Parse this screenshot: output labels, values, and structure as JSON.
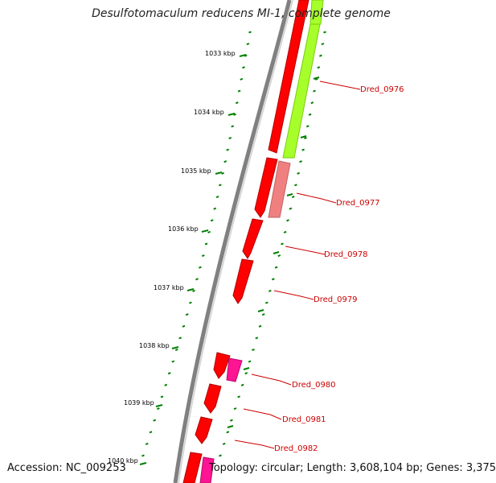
{
  "title": "Desulfotomaculum reducens MI-1, complete genome",
  "accession": "Accession: NC_009253",
  "summary": "Topology: circular; Length: 3,608,104 bp; Genes: 3,375",
  "colors": {
    "backbone": "#808080",
    "forward_gene": "#ff0000",
    "reverse_gene_green": "#a6ff2a",
    "reverse_gene_pink": "#f08080",
    "reverse_gene_magenta": "#ff1493",
    "tick": "#008000",
    "label_line": "#cc0000"
  },
  "ticks": [
    {
      "label": "1033 kbp"
    },
    {
      "label": "1034 kbp"
    },
    {
      "label": "1035 kbp"
    },
    {
      "label": "1036 kbp"
    },
    {
      "label": "1037 kbp"
    },
    {
      "label": "1038 kbp"
    },
    {
      "label": "1039 kbp"
    },
    {
      "label": "1040 kbp"
    }
  ],
  "genes": [
    {
      "name": "Dred_0976",
      "strand": "reverse",
      "color": "green"
    },
    {
      "name": "Dred_0977",
      "strand": "reverse",
      "color": "pink"
    },
    {
      "name": "Dred_0978",
      "strand": "forward",
      "color": "red"
    },
    {
      "name": "Dred_0979",
      "strand": "forward",
      "color": "red"
    },
    {
      "name": "Dred_0980",
      "strand": "reverse",
      "color": "magenta"
    },
    {
      "name": "Dred_0981",
      "strand": "forward",
      "color": "red"
    },
    {
      "name": "Dred_0982",
      "strand": "forward",
      "color": "red"
    }
  ]
}
